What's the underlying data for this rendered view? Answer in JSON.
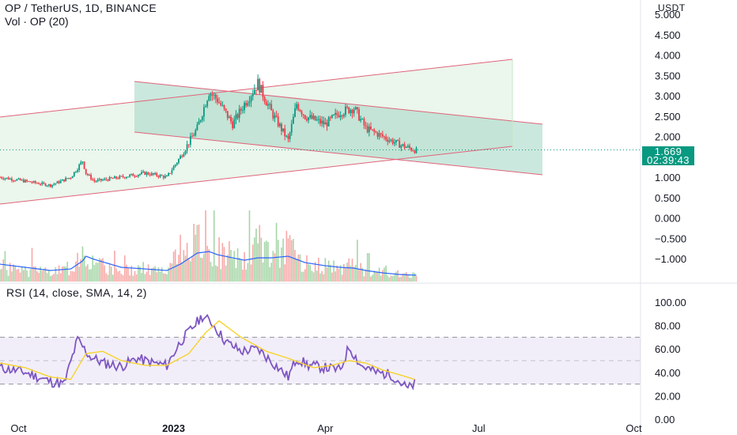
{
  "header": {
    "symbol": "OP / TetherUS",
    "interval": "1D",
    "exchange": "BINANCE",
    "separator": ",",
    "volume_indicator": "Vol · OP (20)"
  },
  "price_axis": {
    "unit": "USDT",
    "ticks": [
      "5.000",
      "4.500",
      "4.000",
      "3.500",
      "3.000",
      "2.500",
      "2.000",
      "1.000",
      "0.500",
      "0.000",
      "−0.500",
      "−1.000"
    ],
    "tick_values": [
      5.0,
      4.5,
      4.0,
      3.5,
      3.0,
      2.5,
      2.0,
      1.0,
      0.5,
      0.0,
      -0.5,
      -1.0
    ]
  },
  "last_price": {
    "value": "1.669",
    "countdown": "02:39:43",
    "color": "#089981"
  },
  "rsi": {
    "legend": "RSI (14, close, SMA, 14, 2)",
    "ticks": [
      "100.00",
      "80.00",
      "60.00",
      "40.00",
      "20.00",
      "0.00"
    ],
    "tick_values": [
      100,
      80,
      60,
      40,
      20,
      0
    ],
    "upper_band": 70,
    "middle_band": 50,
    "lower_band": 30,
    "line_color": "#7e57c2",
    "sma_color": "#f7d32b"
  },
  "time_axis": {
    "labels": [
      "Oct",
      "2023",
      "Apr",
      "Jul",
      "Oct"
    ]
  },
  "colors": {
    "up": "#089981",
    "down": "#f23645",
    "channel_line": "#e0637a",
    "channel_fill_light": "#e8f5e9",
    "channel_fill_teal": "#a8d8c8",
    "volume_ma": "#2962ff"
  },
  "chart_data": [
    {
      "type": "candlestick",
      "title": "OP / TetherUS, 1D, BINANCE",
      "ylabel": "USDT",
      "ylim": [
        -1.2,
        5.0
      ],
      "x_range": [
        "2022-09-20",
        "2023-10-05"
      ],
      "series": [
        {
          "name": "OP / TetherUS",
          "x": [
            "2022-09-20",
            "2022-10-05",
            "2022-10-20",
            "2022-11-01",
            "2022-11-08",
            "2022-11-10",
            "2022-11-15",
            "2022-12-01",
            "2022-12-15",
            "2022-12-28",
            "2023-01-05",
            "2023-01-15",
            "2023-01-22",
            "2023-01-27",
            "2023-02-05",
            "2023-02-12",
            "2023-02-20",
            "2023-02-28",
            "2023-03-10",
            "2023-03-15",
            "2023-03-20",
            "2023-04-01",
            "2023-04-10",
            "2023-04-18",
            "2023-04-25",
            "2023-05-05",
            "2023-05-15",
            "2023-05-25"
          ],
          "close": [
            1.0,
            0.9,
            0.8,
            1.0,
            1.4,
            1.1,
            0.9,
            1.0,
            1.1,
            1.0,
            1.5,
            2.2,
            3.1,
            2.9,
            2.3,
            2.8,
            3.3,
            2.6,
            1.9,
            2.8,
            2.5,
            2.3,
            2.6,
            2.7,
            2.2,
            2.0,
            1.8,
            1.65
          ]
        }
      ]
    },
    {
      "type": "bar",
      "title": "Vol · OP (20)",
      "series": [
        {
          "name": "Volume",
          "values": [
            20,
            14,
            12,
            18,
            45,
            40,
            22,
            15,
            18,
            12,
            40,
            55,
            48,
            42,
            30,
            28,
            50,
            42,
            45,
            32,
            25,
            20,
            18,
            22,
            15,
            12,
            10,
            8
          ]
        },
        {
          "name": "Volume MA",
          "values": [
            22,
            18,
            14,
            16,
            26,
            32,
            28,
            18,
            16,
            14,
            22,
            36,
            38,
            34,
            30,
            27,
            30,
            30,
            32,
            28,
            24,
            20,
            18,
            17,
            14,
            11,
            9,
            8
          ]
        }
      ]
    },
    {
      "type": "line",
      "title": "RSI (14, close, SMA, 14, 2)",
      "ylim": [
        0,
        100
      ],
      "series": [
        {
          "name": "RSI",
          "x": [
            "2022-09-20",
            "2022-10-05",
            "2022-10-20",
            "2022-10-28",
            "2022-11-05",
            "2022-11-12",
            "2022-11-20",
            "2022-12-01",
            "2022-12-10",
            "2022-12-20",
            "2022-12-28",
            "2023-01-05",
            "2023-01-12",
            "2023-01-18",
            "2023-01-24",
            "2023-02-01",
            "2023-02-10",
            "2023-02-20",
            "2023-03-01",
            "2023-03-10",
            "2023-03-15",
            "2023-03-22",
            "2023-04-01",
            "2023-04-10",
            "2023-04-15",
            "2023-04-22",
            "2023-05-01",
            "2023-05-10",
            "2023-05-15",
            "2023-05-20",
            "2023-05-24"
          ],
          "values": [
            44,
            40,
            32,
            30,
            68,
            54,
            48,
            45,
            52,
            48,
            46,
            66,
            78,
            88,
            82,
            66,
            58,
            60,
            48,
            36,
            52,
            46,
            44,
            42,
            62,
            46,
            40,
            38,
            32,
            26,
            30
          ]
        },
        {
          "name": "RSI-based MA",
          "x": [
            "2022-09-20",
            "2022-10-05",
            "2022-10-20",
            "2022-11-01",
            "2022-11-10",
            "2022-11-20",
            "2022-12-01",
            "2022-12-15",
            "2022-12-28",
            "2023-01-10",
            "2023-01-20",
            "2023-01-28",
            "2023-02-10",
            "2023-02-25",
            "2023-03-10",
            "2023-03-25",
            "2023-04-05",
            "2023-04-15",
            "2023-04-25",
            "2023-05-05",
            "2023-05-15",
            "2023-05-24"
          ],
          "values": [
            48,
            44,
            36,
            34,
            56,
            58,
            50,
            46,
            46,
            56,
            74,
            84,
            70,
            58,
            52,
            44,
            46,
            50,
            48,
            42,
            38,
            34
          ]
        }
      ]
    }
  ]
}
